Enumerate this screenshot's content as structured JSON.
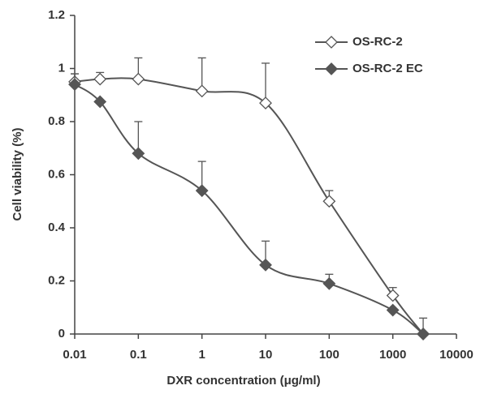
{
  "chart_data": {
    "type": "line",
    "x": [
      0.01,
      0.025,
      0.1,
      1,
      10,
      100,
      1000,
      3000
    ],
    "xlim": [
      0.01,
      10000
    ],
    "xticks": [
      0.01,
      0.1,
      1,
      10,
      100,
      1000,
      10000
    ],
    "xscale": "log",
    "ylim": [
      0,
      1.2
    ],
    "yticks": [
      0,
      0.2,
      0.4,
      0.6,
      0.8,
      1,
      1.2
    ],
    "xlabel": "DXR concentration (μg/ml)",
    "ylabel": "Cell viability (%)",
    "legend": "upper right",
    "series": [
      {
        "name": "OS-RC-2",
        "color": "#555555",
        "marker": "open-diamond",
        "values": [
          0.95,
          0.96,
          0.96,
          0.915,
          0.87,
          0.5,
          0.145,
          0
        ],
        "errors": [
          0.03,
          0.025,
          0.08,
          0.125,
          0.15,
          0.04,
          0.03,
          0.06
        ]
      },
      {
        "name": "OS-RC-2 EC",
        "color": "#555555",
        "marker": "filled-diamond",
        "values": [
          0.94,
          0.875,
          0.68,
          0.54,
          0.26,
          0.19,
          0.09,
          0
        ],
        "errors": [
          0.04,
          0,
          0.12,
          0.11,
          0.09,
          0.035,
          0,
          0
        ]
      }
    ]
  }
}
